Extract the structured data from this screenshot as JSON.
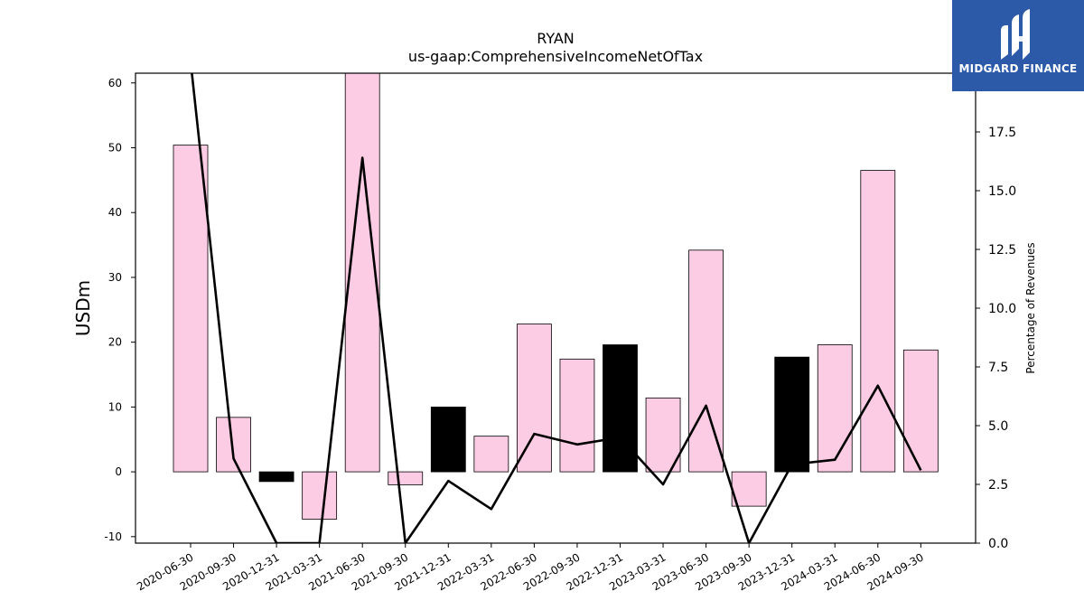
{
  "chart_data": {
    "type": "bar",
    "title": "RYAN",
    "subtitle": "us-gaap:ComprehensiveIncomeNetOfTax",
    "ylabel": "USDm",
    "y2label": "Percentage of Revenues",
    "ylim": [
      -11,
      61.5
    ],
    "y2lim": [
      0,
      20
    ],
    "yticks": [
      -10,
      0,
      10,
      20,
      30,
      40,
      50,
      60
    ],
    "y2ticks": [
      "0.0",
      "2.5",
      "5.0",
      "7.5",
      "10.0",
      "12.5",
      "15.0",
      "17.5"
    ],
    "categories": [
      "2020-06-30",
      "2020-09-30",
      "2020-12-31",
      "2021-03-31",
      "2021-06-30",
      "2021-09-30",
      "2021-12-31",
      "2022-03-31",
      "2022-06-30",
      "2022-09-30",
      "2022-12-31",
      "2023-03-31",
      "2023-06-30",
      "2023-09-30",
      "2023-12-31",
      "2024-03-31",
      "2024-06-30",
      "2024-09-30"
    ],
    "series": [
      {
        "type": "bar",
        "values": [
          50.4,
          8.4,
          -1.5,
          -7.3,
          61.5,
          -2.0,
          10.0,
          5.5,
          22.8,
          17.4,
          19.6,
          11.4,
          34.2,
          -5.3,
          17.7,
          19.6,
          46.5,
          18.8
        ],
        "highlight": [
          false,
          false,
          true,
          false,
          false,
          false,
          true,
          false,
          false,
          false,
          true,
          false,
          false,
          false,
          true,
          false,
          false,
          false
        ]
      },
      {
        "type": "line",
        "axis": "right",
        "values": [
          20.5,
          3.6,
          0.0,
          0.0,
          16.4,
          0.0,
          2.65,
          1.45,
          4.65,
          4.2,
          4.5,
          2.5,
          5.85,
          0.0,
          3.35,
          3.55,
          6.7,
          3.1
        ]
      }
    ],
    "colors": {
      "bar": "#fccbe4",
      "bar_highlight": "#000000",
      "line": "#000000"
    },
    "grid": false
  },
  "logo": {
    "text": "MIDGARD FINANCE"
  }
}
